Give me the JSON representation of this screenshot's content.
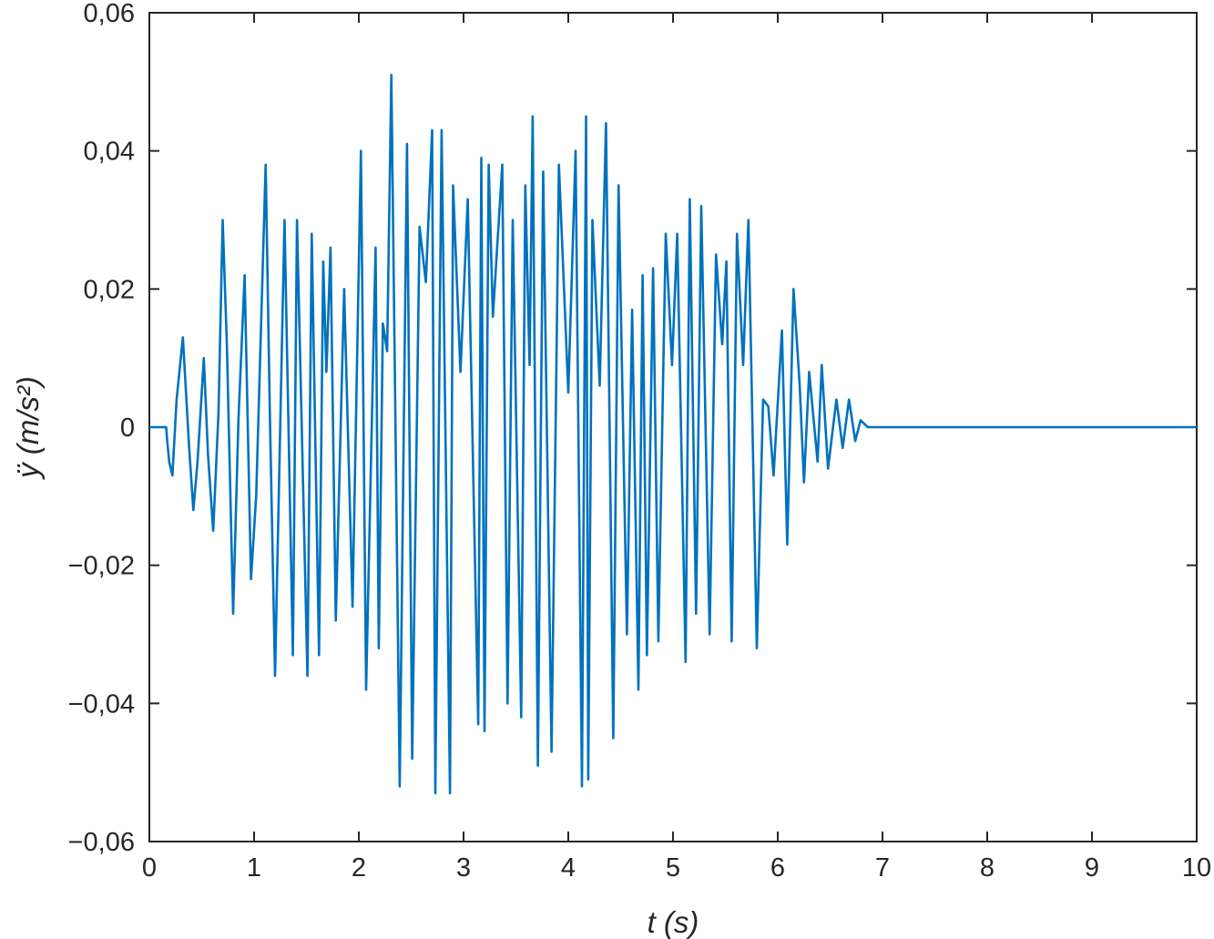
{
  "chart_data": {
    "type": "line",
    "title": "",
    "xlabel": "t (s)",
    "ylabel": "ÿ (m/s²)",
    "xlim": [
      0,
      10
    ],
    "ylim": [
      -0.06,
      0.06
    ],
    "x_ticks": [
      0,
      1,
      2,
      3,
      4,
      5,
      6,
      7,
      8,
      9,
      10
    ],
    "y_ticks": [
      -0.06,
      -0.04,
      -0.02,
      0,
      0.02,
      0.04,
      0.06
    ],
    "x_tick_labels": [
      "0",
      "1",
      "2",
      "3",
      "4",
      "5",
      "6",
      "7",
      "8",
      "9",
      "10"
    ],
    "y_tick_labels": [
      "−0,06",
      "−0,04",
      "−0,02",
      "0",
      "0,02",
      "0,04",
      "0,06"
    ],
    "grid": false,
    "line_color": "#0072BD",
    "series": [
      {
        "x": [
          0,
          0.16,
          0.17,
          0.19,
          0.22,
          0.26,
          0.32,
          0.38,
          0.42,
          0.46,
          0.52,
          0.56,
          0.61,
          0.66,
          0.7,
          0.74,
          0.8,
          0.85,
          0.91,
          0.97,
          1.02,
          1.11,
          1.15,
          1.2,
          1.29,
          1.37,
          1.41,
          1.51,
          1.55,
          1.62,
          1.66,
          1.69,
          1.73,
          1.78,
          1.86,
          1.94,
          2.02,
          2.07,
          2.16,
          2.19,
          2.23,
          2.27,
          2.31,
          2.39,
          2.46,
          2.51,
          2.58,
          2.64,
          2.7,
          2.73,
          2.79,
          2.87,
          2.9,
          2.97,
          3.04,
          3.14,
          3.17,
          3.2,
          3.24,
          3.28,
          3.37,
          3.42,
          3.47,
          3.55,
          3.59,
          3.63,
          3.66,
          3.71,
          3.76,
          3.84,
          3.91,
          4.0,
          4.07,
          4.13,
          4.17,
          4.19,
          4.23,
          4.3,
          4.36,
          4.43,
          4.48,
          4.56,
          4.61,
          4.67,
          4.71,
          4.75,
          4.81,
          4.86,
          4.93,
          4.99,
          5.04,
          5.12,
          5.16,
          5.22,
          5.27,
          5.35,
          5.41,
          5.47,
          5.51,
          5.56,
          5.61,
          5.67,
          5.72,
          5.8,
          5.86,
          5.91,
          5.96,
          6.04,
          6.09,
          6.15,
          6.21,
          6.25,
          6.3,
          6.38,
          6.42,
          6.48,
          6.56,
          6.62,
          6.68,
          6.74,
          6.79,
          6.86,
          6.91,
          6.96,
          7.05,
          7.11,
          7.16,
          7.22,
          7.3,
          7.38,
          7.44,
          7.51,
          7.56,
          7.64,
          7.71,
          7.76,
          7.8,
          7.84,
          7.91,
          7.96,
          8.03,
          8.07,
          8.12,
          8.2,
          8.23,
          8.3,
          8.37,
          8.41,
          8.49,
          8.56,
          8.6,
          8.66,
          8.71,
          8.74,
          8.8,
          8.88,
          8.95,
          9.0,
          9.07,
          9.13,
          9.17,
          9.21,
          9.27,
          9.33,
          9.4,
          9.45,
          9.52,
          9.6,
          9.66,
          9.72,
          9.8,
          9.86,
          9.96,
          10.0
        ],
        "y": [
          0,
          0,
          -0.002,
          -0.005,
          -0.007,
          0.004,
          0.013,
          -0.003,
          -0.012,
          -0.005,
          0.01,
          -0.004,
          -0.015,
          0.002,
          0.03,
          0.012,
          -0.027,
          0.001,
          0.022,
          -0.022,
          -0.01,
          0.038,
          0.002,
          -0.036,
          0.03,
          -0.033,
          0.03,
          -0.036,
          0.028,
          -0.033,
          0.024,
          0.008,
          0.026,
          -0.028,
          0.02,
          -0.026,
          0.04,
          -0.038,
          0.026,
          -0.032,
          0.015,
          0.011,
          0.051,
          -0.052,
          0.041,
          -0.048,
          0.029,
          0.021,
          0.043,
          -0.053,
          0.043,
          -0.053,
          0.035,
          0.008,
          0.033,
          -0.043,
          0.039,
          -0.044,
          0.038,
          0.016,
          0.038,
          -0.04,
          0.03,
          -0.042,
          0.035,
          0.009,
          0.045,
          -0.049,
          0.037,
          -0.047,
          0.038,
          0.005,
          0.04,
          -0.052,
          0.045,
          -0.051,
          0.03,
          0.006,
          0.044,
          -0.045,
          0.035,
          -0.03,
          0.017,
          -0.038,
          0.022,
          -0.033,
          0.023,
          -0.031,
          0.028,
          0.009,
          0.028,
          -0.034,
          0.033,
          -0.027,
          0.032,
          -0.03,
          0.025,
          0.012,
          0.024,
          -0.031,
          0.028,
          0.009,
          0.03,
          -0.032,
          0.004,
          0.003,
          -0.007,
          0.014,
          -0.017,
          0.02,
          0.006,
          -0.008,
          0.008,
          -0.005,
          0.009,
          -0.006,
          0.004,
          -0.003,
          0.004,
          -0.002,
          0.001,
          0,
          0,
          0,
          0,
          0,
          0,
          0,
          0,
          0,
          0,
          0,
          0,
          0,
          0,
          0,
          0,
          0,
          0,
          0,
          0,
          0,
          0,
          0,
          0,
          0,
          0,
          0,
          0,
          0,
          0,
          0,
          0,
          0,
          0,
          0,
          0,
          0,
          0,
          0,
          0,
          0,
          0,
          0,
          0,
          0,
          0,
          0,
          0,
          0,
          0,
          0,
          0,
          0
        ]
      }
    ]
  }
}
